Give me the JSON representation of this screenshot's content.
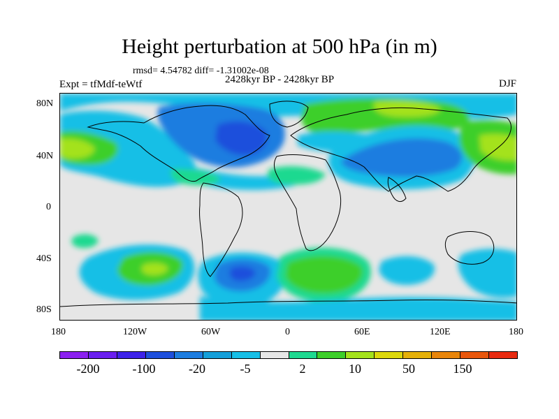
{
  "title": "Height perturbation at 500 hPa (in m)",
  "stats": "rmsd= 4.54782 diff= -1.31002e-08",
  "period": "2428kyr BP - 2428kyr BP",
  "experiment": "Expt = tfMdf-teWtf",
  "season": "DJF",
  "lat_ticks": [
    "80N",
    "40N",
    "0",
    "40S",
    "80S"
  ],
  "lon_ticks": [
    "180",
    "120W",
    "60W",
    "0",
    "60E",
    "120E",
    "180"
  ],
  "colorbar": {
    "labels": [
      "-200",
      "-100",
      "-20",
      "-5",
      "2",
      "10",
      "50",
      "150"
    ],
    "colors": [
      "#8b20f0",
      "#6a1ff0",
      "#3d22e8",
      "#1e4fdc",
      "#1d7de0",
      "#149fd9",
      "#17bfe6",
      "#e6e6e6",
      "#1ed990",
      "#3dcf2a",
      "#a4e21c",
      "#dcd80c",
      "#e5b008",
      "#e8850a",
      "#e8560c",
      "#e82a10"
    ]
  },
  "map_fields": {
    "background": "#e6e6e6",
    "regions": [
      {
        "name": "north-pacific-cyan",
        "color": "#17bfe6"
      },
      {
        "name": "north-america-blue",
        "color": "#1d7de0"
      },
      {
        "name": "eurasia-green",
        "color": "#3dcf2a"
      },
      {
        "name": "southern-ocean-cyan",
        "color": "#17bfe6"
      },
      {
        "name": "south-pacific-green",
        "color": "#3dcf2a"
      },
      {
        "name": "south-atlantic-blue",
        "color": "#1d7de0"
      }
    ]
  }
}
